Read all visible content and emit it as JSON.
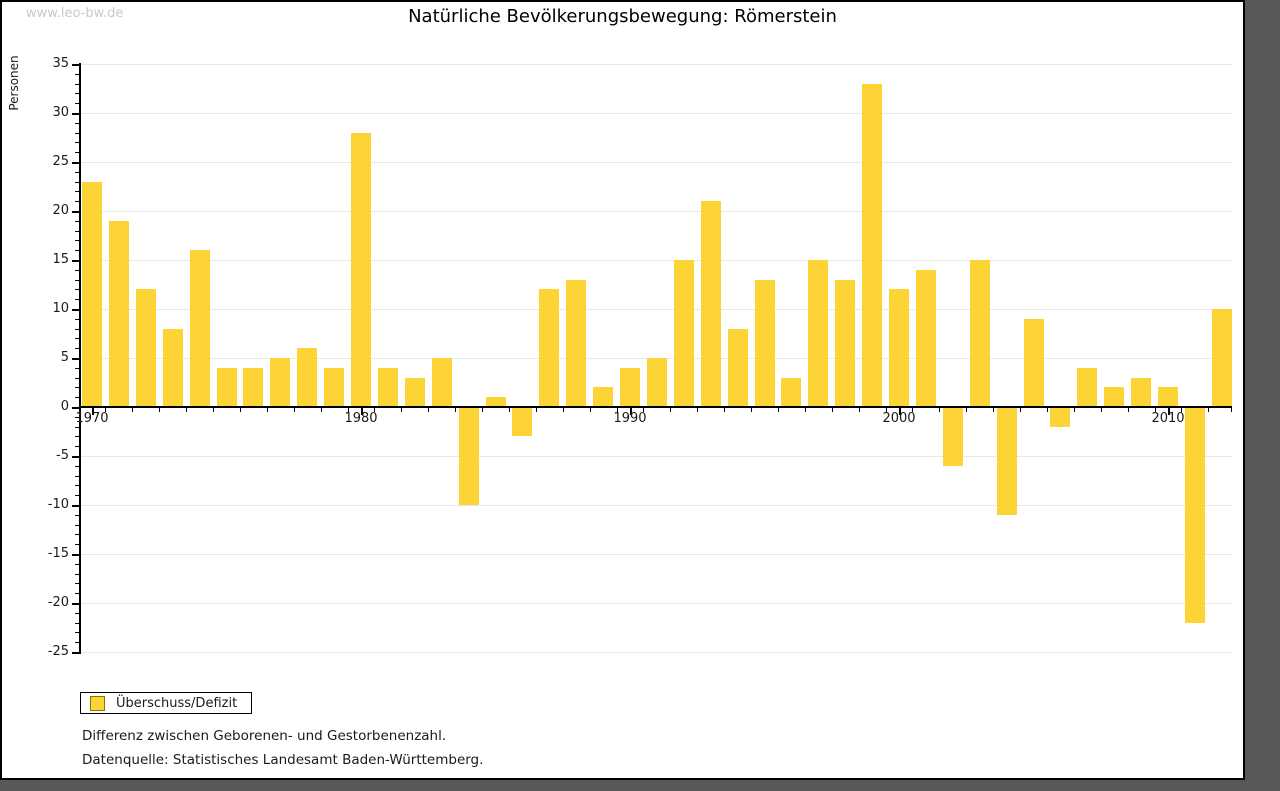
{
  "watermark": "www.leo-bw.de",
  "title": "Natürliche Bevölkerungsbewegung: Römerstein",
  "legend": {
    "label": "Überschuss/Defizit"
  },
  "footnotes": {
    "line1": "Differenz zwischen Geborenen- und Gestorbenenzahl.",
    "line2": "Datenquelle: Statistisches Landesamt Baden-Württemberg."
  },
  "colors": {
    "bar": "#fcd435",
    "bar_swatch_border": "#8f7500",
    "grid": "#e7e7e7",
    "axis": "#000000",
    "watermark": "#c9c9c9",
    "frame_background": "#58585a"
  },
  "chart_data": {
    "type": "bar",
    "title": "Natürliche Bevölkerungsbewegung: Römerstein",
    "xlabel": "",
    "ylabel": "Personen",
    "ylim": [
      -25,
      35
    ],
    "grid": true,
    "legend_position": "bottom-left",
    "series_name": "Überschuss/Defizit",
    "y_major_ticks": [
      -25,
      -20,
      -15,
      -10,
      -5,
      0,
      5,
      10,
      15,
      20,
      25,
      30,
      35
    ],
    "x_major_ticks": [
      1970,
      1980,
      1990,
      2000,
      2010
    ],
    "categories": [
      1970,
      1971,
      1972,
      1973,
      1974,
      1975,
      1976,
      1977,
      1978,
      1979,
      1980,
      1981,
      1982,
      1983,
      1984,
      1985,
      1986,
      1987,
      1988,
      1989,
      1990,
      1991,
      1992,
      1993,
      1994,
      1995,
      1996,
      1997,
      1998,
      1999,
      2000,
      2001,
      2002,
      2003,
      2004,
      2005,
      2006,
      2007,
      2008,
      2009,
      2010,
      2011,
      2012
    ],
    "values": [
      23,
      19,
      12,
      8,
      16,
      4,
      4,
      5,
      6,
      4,
      28,
      4,
      3,
      5,
      -10,
      1,
      -3,
      12,
      13,
      2,
      4,
      5,
      15,
      21,
      8,
      13,
      3,
      15,
      13,
      33,
      12,
      14,
      -6,
      15,
      -11,
      9,
      -2,
      4,
      2,
      3,
      2,
      -22,
      10
    ]
  }
}
